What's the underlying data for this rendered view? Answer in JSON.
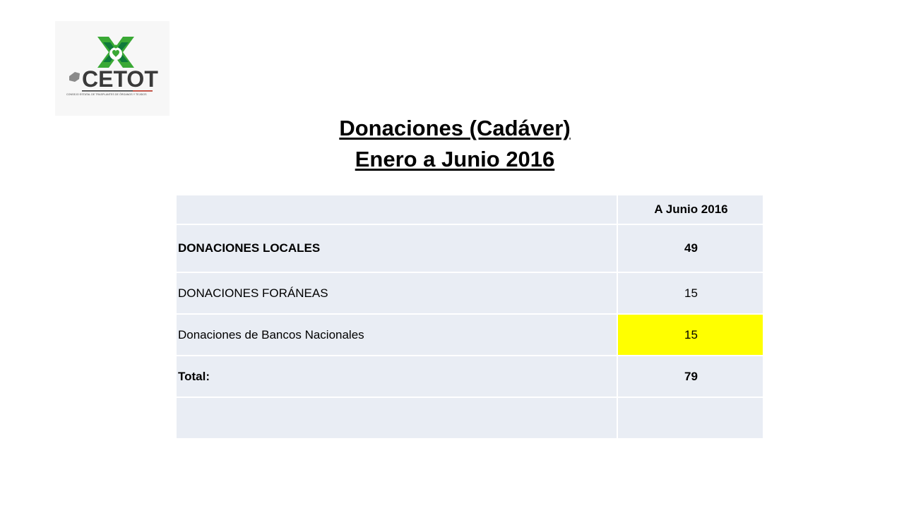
{
  "logo": {
    "name": "CETOT",
    "subtitle": "CONSEJO ESTATAL DE TRASPLANTES DE ÓRGANOS Y TEJIDOS",
    "colors": {
      "green": "#3aa935",
      "dark_green": "#0f7a3a",
      "gray": "#3a3a3a",
      "red": "#c0392b"
    }
  },
  "title": {
    "line1": "Donaciones (Cadáver)",
    "line2": "Enero a Junio 2016"
  },
  "table": {
    "header": [
      "",
      "A Junio 2016"
    ],
    "rows": [
      {
        "label": "DONACIONES LOCALES",
        "value": "49",
        "bold": true
      },
      {
        "label": "DONACIONES FORÁNEAS",
        "value": "15",
        "bold": false
      },
      {
        "label": "Donaciones de Bancos Nacionales",
        "value": "15",
        "bold": false,
        "highlight": "#ffff00"
      },
      {
        "label": "Total:",
        "value": "79",
        "bold": true
      },
      {
        "label": "",
        "value": "",
        "bold": false
      }
    ],
    "cell_background": "#e9edf4",
    "header_text_color": "#777777"
  }
}
